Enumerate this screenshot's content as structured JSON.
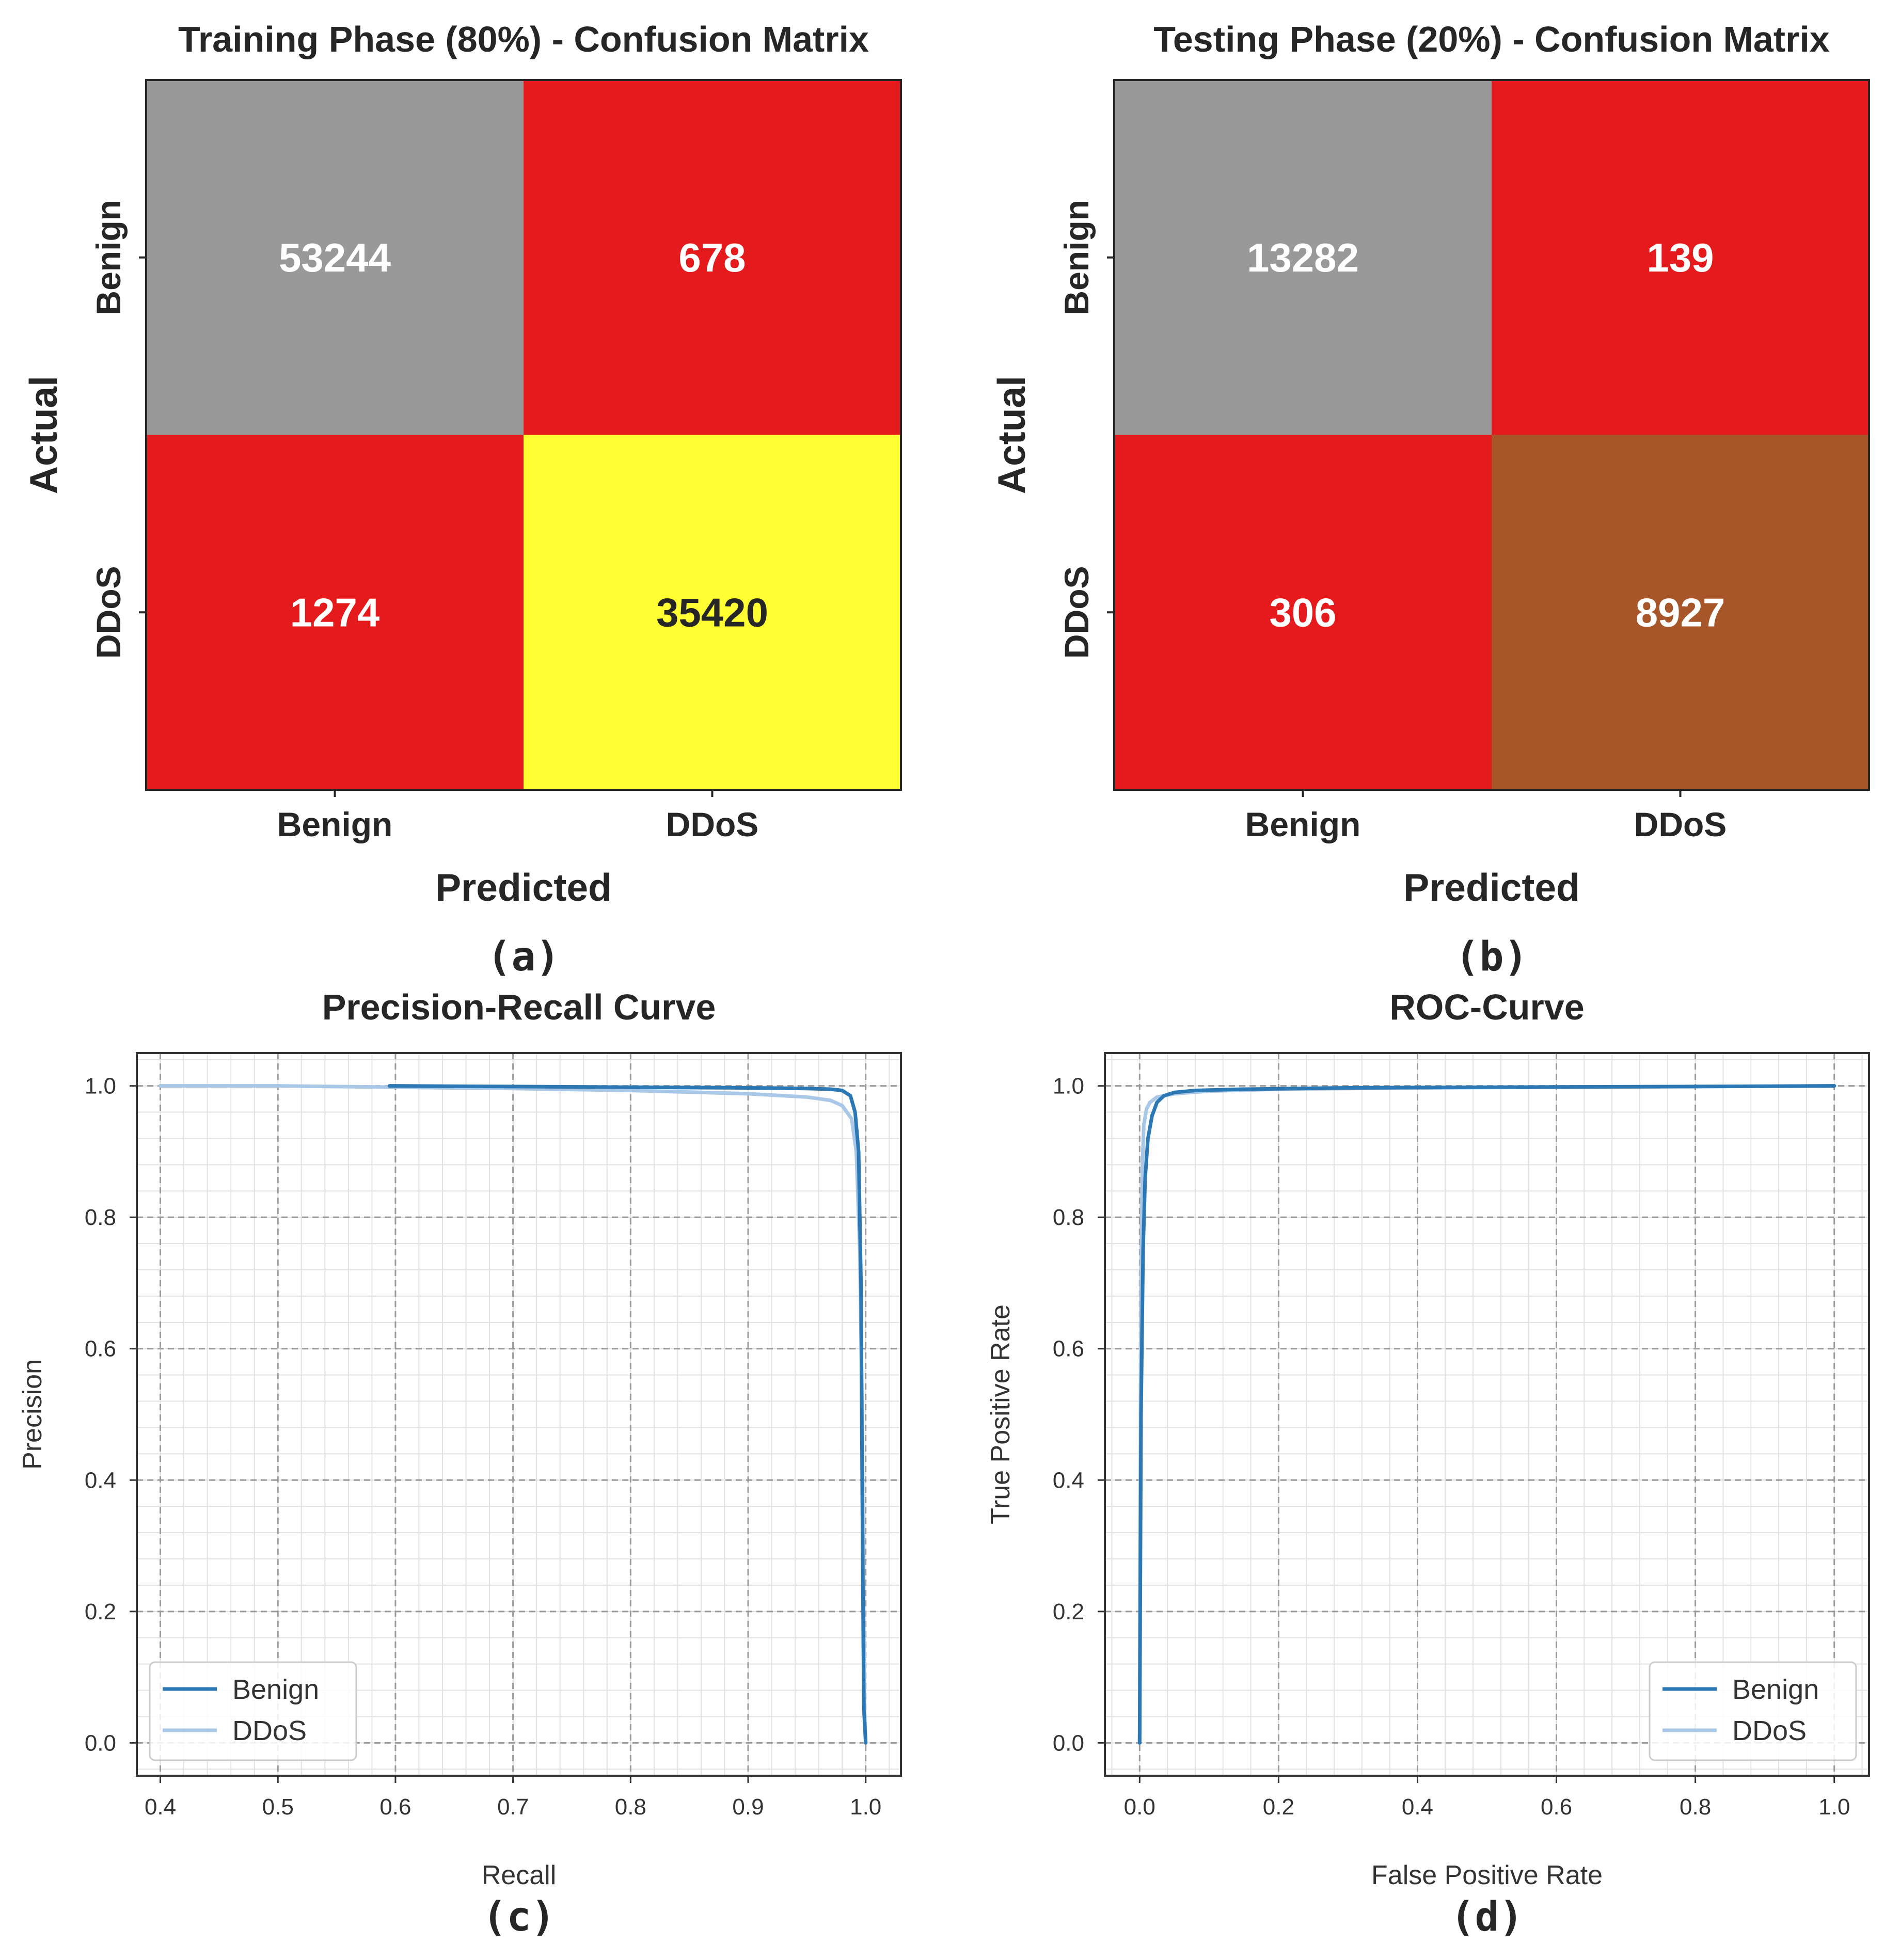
{
  "chart_data": [
    {
      "type": "heatmap",
      "title": "Training Phase (80%) - Confusion Matrix",
      "xlabel": "Predicted",
      "ylabel": "Actual",
      "x_categories": [
        "Benign",
        "DDoS"
      ],
      "y_categories": [
        "Benign",
        "DDoS"
      ],
      "values": [
        [
          53244,
          678
        ],
        [
          1274,
          35420
        ]
      ],
      "cell_colors": [
        [
          "#999999",
          "#e41a1c"
        ],
        [
          "#e41a1c",
          "#ffff33"
        ]
      ],
      "text_colors": [
        [
          "#ffffff",
          "#ffffff"
        ],
        [
          "#ffffff",
          "#262626"
        ]
      ],
      "panel_label": "(a)"
    },
    {
      "type": "heatmap",
      "title": "Testing Phase (20%) - Confusion Matrix",
      "xlabel": "Predicted",
      "ylabel": "Actual",
      "x_categories": [
        "Benign",
        "DDoS"
      ],
      "y_categories": [
        "Benign",
        "DDoS"
      ],
      "values": [
        [
          13282,
          139
        ],
        [
          306,
          8927
        ]
      ],
      "cell_colors": [
        [
          "#999999",
          "#e41a1c"
        ],
        [
          "#e41a1c",
          "#a65628"
        ]
      ],
      "text_colors": [
        [
          "#ffffff",
          "#ffffff"
        ],
        [
          "#ffffff",
          "#ffffff"
        ]
      ],
      "panel_label": "(b)"
    },
    {
      "type": "line",
      "title": "Precision-Recall Curve",
      "xlabel": "Recall",
      "ylabel": "Precision",
      "xlim": [
        0.38,
        1.03
      ],
      "ylim": [
        -0.05,
        1.05
      ],
      "xticks": [
        0.4,
        0.5,
        0.6,
        0.7,
        0.8,
        0.9,
        1.0
      ],
      "xtick_labels": [
        "0.4",
        "0.5",
        "0.6",
        "0.7",
        "0.8",
        "0.9",
        "1.0"
      ],
      "yticks": [
        0.0,
        0.2,
        0.4,
        0.6,
        0.8,
        1.0
      ],
      "ytick_labels": [
        "0.0",
        "0.2",
        "0.4",
        "0.6",
        "0.8",
        "1.0"
      ],
      "grid": true,
      "legend_position": "lower-left",
      "series": [
        {
          "name": "Benign",
          "color": "#2b78b4",
          "x": [
            0.595,
            0.7,
            0.8,
            0.9,
            0.95,
            0.97,
            0.98,
            0.987,
            0.991,
            0.994,
            0.996,
            0.997,
            0.998,
            0.9985,
            1.0
          ],
          "y": [
            1.0,
            0.999,
            0.998,
            0.997,
            0.996,
            0.995,
            0.993,
            0.985,
            0.96,
            0.9,
            0.7,
            0.4,
            0.15,
            0.05,
            0.0
          ]
        },
        {
          "name": "DDoS",
          "color": "#a9c8e8",
          "x": [
            0.4,
            0.5,
            0.6,
            0.7,
            0.8,
            0.9,
            0.95,
            0.97,
            0.98,
            0.988,
            0.992,
            0.995,
            0.997,
            0.998,
            0.999,
            1.0
          ],
          "y": [
            1.0,
            1.0,
            0.998,
            0.996,
            0.993,
            0.988,
            0.983,
            0.978,
            0.97,
            0.95,
            0.9,
            0.75,
            0.5,
            0.25,
            0.05,
            0.0
          ]
        }
      ],
      "panel_label": "(c)"
    },
    {
      "type": "line",
      "title": "ROC-Curve",
      "xlabel": "False Positive Rate",
      "ylabel": "True Positive Rate",
      "xlim": [
        -0.05,
        1.05
      ],
      "ylim": [
        -0.05,
        1.05
      ],
      "xticks": [
        0.0,
        0.2,
        0.4,
        0.6,
        0.8,
        1.0
      ],
      "xtick_labels": [
        "0.0",
        "0.2",
        "0.4",
        "0.6",
        "0.8",
        "1.0"
      ],
      "yticks": [
        0.0,
        0.2,
        0.4,
        0.6,
        0.8,
        1.0
      ],
      "ytick_labels": [
        "0.0",
        "0.2",
        "0.4",
        "0.6",
        "0.8",
        "1.0"
      ],
      "grid": true,
      "legend_position": "lower-right",
      "series": [
        {
          "name": "Benign",
          "color": "#2b78b4",
          "x": [
            0.0,
            0.002,
            0.005,
            0.008,
            0.012,
            0.018,
            0.025,
            0.035,
            0.05,
            0.08,
            0.15,
            0.3,
            0.5,
            0.8,
            1.0
          ],
          "y": [
            0.0,
            0.5,
            0.75,
            0.86,
            0.92,
            0.955,
            0.975,
            0.985,
            0.99,
            0.993,
            0.995,
            0.997,
            0.998,
            0.999,
            1.0
          ]
        },
        {
          "name": "DDoS",
          "color": "#a9c8e8",
          "x": [
            0.0,
            0.001,
            0.002,
            0.004,
            0.006,
            0.01,
            0.015,
            0.025,
            0.05,
            0.1,
            0.2,
            0.4,
            0.6,
            0.8,
            1.0
          ],
          "y": [
            0.0,
            0.4,
            0.7,
            0.88,
            0.94,
            0.965,
            0.975,
            0.983,
            0.988,
            0.992,
            0.995,
            0.997,
            0.998,
            0.999,
            1.0
          ]
        }
      ],
      "panel_label": "(d)"
    }
  ]
}
